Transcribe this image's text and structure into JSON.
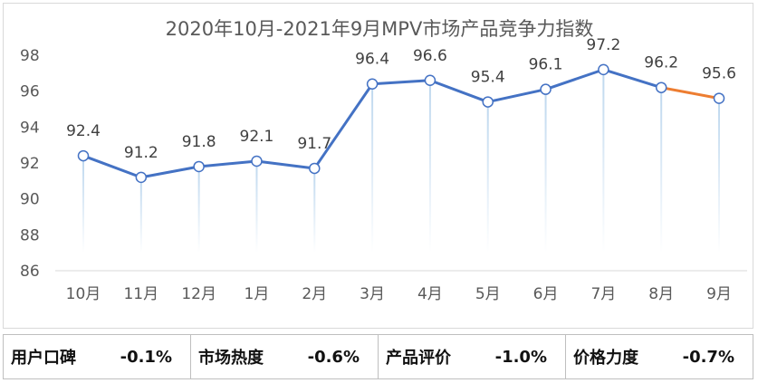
{
  "chart_data": {
    "type": "line",
    "title": "2020年10月-2021年9月MPV市场产品竞争力指数",
    "categories": [
      "10月",
      "11月",
      "12月",
      "1月",
      "2月",
      "3月",
      "4月",
      "5月",
      "6月",
      "7月",
      "8月",
      "9月"
    ],
    "values": [
      92.4,
      91.2,
      91.8,
      92.1,
      91.7,
      96.4,
      96.6,
      95.4,
      96.1,
      97.2,
      96.2,
      95.6
    ],
    "data_labels": [
      "92.4",
      "91.2",
      "91.8",
      "92.1",
      "91.7",
      "96.4",
      "96.6",
      "95.4",
      "96.1",
      "97.2",
      "96.2",
      "95.6"
    ],
    "ylim": [
      86,
      98
    ],
    "yticks": [
      "86",
      "88",
      "90",
      "92",
      "94",
      "96",
      "98"
    ],
    "xlabel": "",
    "ylabel": "",
    "grid": false,
    "line_color": "#4472C4",
    "last_segment_color": "#ED7D31",
    "drop_line_color": "#BDD7EE"
  },
  "stats": [
    {
      "label": "用户口碑",
      "value": "-0.1%"
    },
    {
      "label": "市场热度",
      "value": "-0.6%"
    },
    {
      "label": "产品评价",
      "value": "-1.0%"
    },
    {
      "label": "价格力度",
      "value": "-0.7%"
    }
  ]
}
